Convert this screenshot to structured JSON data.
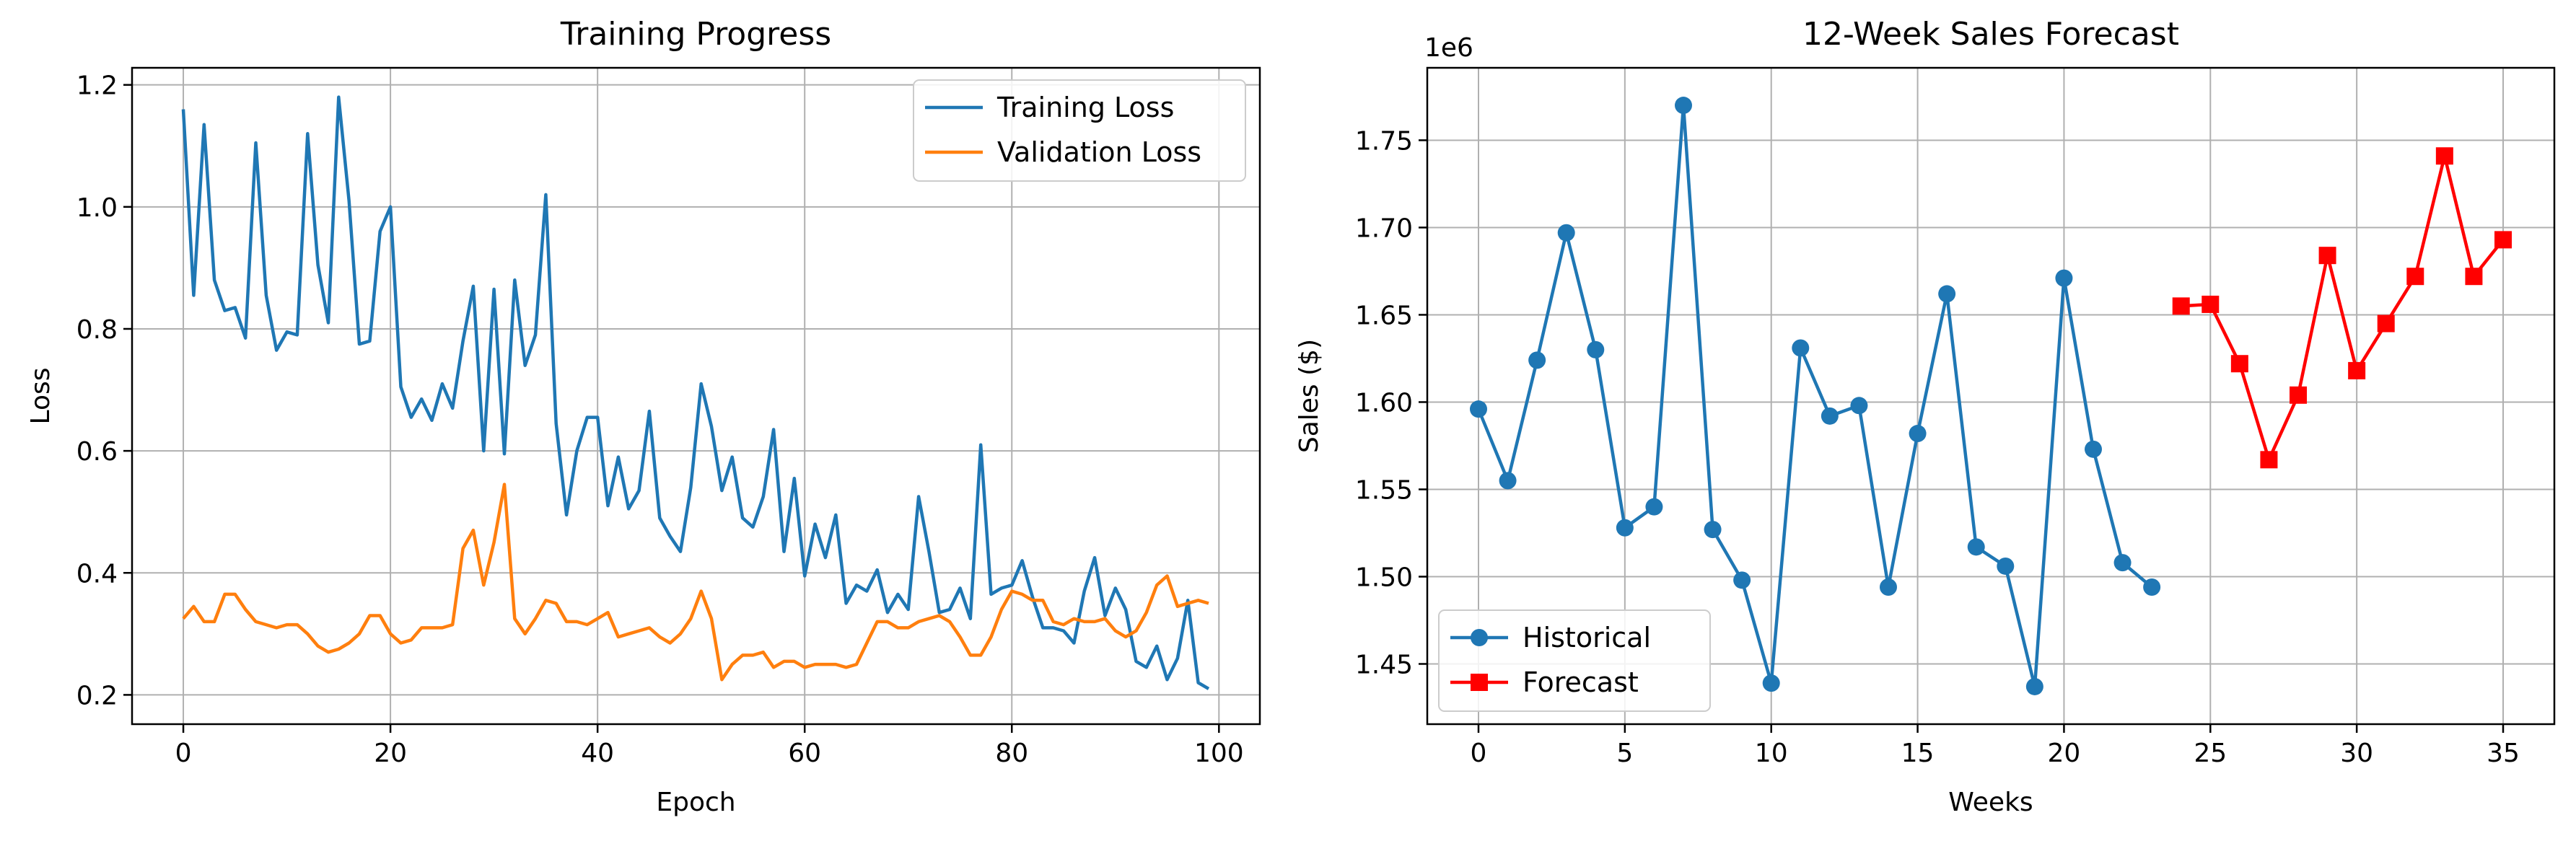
{
  "chart_data": [
    {
      "type": "line",
      "title": "Training Progress",
      "xlabel": "Epoch",
      "ylabel": "Loss",
      "xlim": [
        -4.95,
        103.95
      ],
      "ylim": [
        0.152,
        1.228
      ],
      "xticks": [
        0,
        20,
        40,
        60,
        80,
        100
      ],
      "yticks": [
        0.2,
        0.4,
        0.6,
        0.8,
        1.0,
        1.2
      ],
      "ytick_labels": [
        "0.2",
        "0.4",
        "0.6",
        "0.8",
        "1.0",
        "1.2"
      ],
      "grid": true,
      "legend_position": "upper right",
      "series": [
        {
          "name": "Training Loss",
          "color": "#1f77b4",
          "marker": "none",
          "x": [
            0,
            1,
            2,
            3,
            4,
            5,
            6,
            7,
            8,
            9,
            10,
            11,
            12,
            13,
            14,
            15,
            16,
            17,
            18,
            19,
            20,
            21,
            22,
            23,
            24,
            25,
            26,
            27,
            28,
            29,
            30,
            31,
            32,
            33,
            34,
            35,
            36,
            37,
            38,
            39,
            40,
            41,
            42,
            43,
            44,
            45,
            46,
            47,
            48,
            49,
            50,
            51,
            52,
            53,
            54,
            55,
            56,
            57,
            58,
            59,
            60,
            61,
            62,
            63,
            64,
            65,
            66,
            67,
            68,
            69,
            70,
            71,
            72,
            73,
            74,
            75,
            76,
            77,
            78,
            79,
            80,
            81,
            82,
            83,
            84,
            85,
            86,
            87,
            88,
            89,
            90,
            91,
            92,
            93,
            94,
            95,
            96,
            97,
            98,
            99
          ],
          "values": [
            1.16,
            0.855,
            1.135,
            0.88,
            0.83,
            0.835,
            0.785,
            1.105,
            0.855,
            0.765,
            0.795,
            0.79,
            1.12,
            0.905,
            0.81,
            1.18,
            1.01,
            0.775,
            0.78,
            0.96,
            1.0,
            0.705,
            0.655,
            0.685,
            0.65,
            0.71,
            0.67,
            0.78,
            0.87,
            0.6,
            0.865,
            0.595,
            0.88,
            0.74,
            0.79,
            1.02,
            0.645,
            0.495,
            0.6,
            0.655,
            0.655,
            0.51,
            0.59,
            0.505,
            0.535,
            0.665,
            0.49,
            0.46,
            0.435,
            0.54,
            0.71,
            0.64,
            0.535,
            0.59,
            0.49,
            0.475,
            0.525,
            0.635,
            0.435,
            0.555,
            0.395,
            0.48,
            0.425,
            0.495,
            0.35,
            0.38,
            0.37,
            0.405,
            0.335,
            0.365,
            0.34,
            0.525,
            0.435,
            0.335,
            0.34,
            0.375,
            0.325,
            0.61,
            0.365,
            0.375,
            0.38,
            0.42,
            0.36,
            0.31,
            0.31,
            0.305,
            0.285,
            0.37,
            0.425,
            0.33,
            0.375,
            0.34,
            0.255,
            0.245,
            0.28,
            0.225,
            0.26,
            0.355,
            0.22,
            0.21
          ]
        },
        {
          "name": "Validation Loss",
          "color": "#ff7f0e",
          "marker": "none",
          "x": [
            0,
            1,
            2,
            3,
            4,
            5,
            6,
            7,
            8,
            9,
            10,
            11,
            12,
            13,
            14,
            15,
            16,
            17,
            18,
            19,
            20,
            21,
            22,
            23,
            24,
            25,
            26,
            27,
            28,
            29,
            30,
            31,
            32,
            33,
            34,
            35,
            36,
            37,
            38,
            39,
            40,
            41,
            42,
            43,
            44,
            45,
            46,
            47,
            48,
            49,
            50,
            51,
            52,
            53,
            54,
            55,
            56,
            57,
            58,
            59,
            60,
            61,
            62,
            63,
            64,
            65,
            66,
            67,
            68,
            69,
            70,
            71,
            72,
            73,
            74,
            75,
            76,
            77,
            78,
            79,
            80,
            81,
            82,
            83,
            84,
            85,
            86,
            87,
            88,
            89,
            90,
            91,
            92,
            93,
            94,
            95,
            96,
            97,
            98,
            99
          ],
          "values": [
            0.325,
            0.345,
            0.32,
            0.32,
            0.365,
            0.365,
            0.34,
            0.32,
            0.315,
            0.31,
            0.315,
            0.315,
            0.3,
            0.28,
            0.27,
            0.275,
            0.285,
            0.3,
            0.33,
            0.33,
            0.3,
            0.285,
            0.29,
            0.31,
            0.31,
            0.31,
            0.315,
            0.44,
            0.47,
            0.38,
            0.45,
            0.545,
            0.325,
            0.3,
            0.325,
            0.355,
            0.35,
            0.32,
            0.32,
            0.315,
            0.325,
            0.335,
            0.295,
            0.3,
            0.305,
            0.31,
            0.295,
            0.285,
            0.3,
            0.325,
            0.37,
            0.325,
            0.225,
            0.25,
            0.265,
            0.265,
            0.27,
            0.245,
            0.255,
            0.255,
            0.245,
            0.25,
            0.25,
            0.25,
            0.245,
            0.25,
            0.285,
            0.32,
            0.32,
            0.31,
            0.31,
            0.32,
            0.325,
            0.33,
            0.32,
            0.295,
            0.265,
            0.265,
            0.295,
            0.34,
            0.37,
            0.365,
            0.355,
            0.355,
            0.32,
            0.315,
            0.325,
            0.32,
            0.32,
            0.325,
            0.305,
            0.295,
            0.305,
            0.335,
            0.38,
            0.395,
            0.345,
            0.35,
            0.355,
            0.35
          ]
        }
      ]
    },
    {
      "type": "line",
      "title": "12-Week Sales Forecast",
      "xlabel": "Weeks",
      "ylabel": "Sales ($)",
      "offset_text": "1e6",
      "xlim": [
        -1.75,
        36.75
      ],
      "ylim": [
        1.4155,
        1.7915
      ],
      "xticks": [
        0,
        5,
        10,
        15,
        20,
        25,
        30,
        35
      ],
      "yticks": [
        1.45,
        1.5,
        1.55,
        1.6,
        1.65,
        1.7,
        1.75
      ],
      "ytick_labels": [
        "1.45",
        "1.50",
        "1.55",
        "1.60",
        "1.65",
        "1.70",
        "1.75"
      ],
      "grid": true,
      "legend_position": "lower left",
      "series": [
        {
          "name": "Historical",
          "color": "#1f77b4",
          "marker": "circle",
          "x": [
            0,
            1,
            2,
            3,
            4,
            5,
            6,
            7,
            8,
            9,
            10,
            11,
            12,
            13,
            14,
            15,
            16,
            17,
            18,
            19,
            20,
            21,
            22,
            23
          ],
          "values": [
            1.596,
            1.555,
            1.624,
            1.697,
            1.63,
            1.528,
            1.54,
            1.77,
            1.527,
            1.498,
            1.439,
            1.631,
            1.592,
            1.598,
            1.494,
            1.582,
            1.662,
            1.517,
            1.506,
            1.437,
            1.671,
            1.573,
            1.508,
            1.494
          ]
        },
        {
          "name": "Forecast",
          "color": "#ff0000",
          "marker": "square",
          "x": [
            24,
            25,
            26,
            27,
            28,
            29,
            30,
            31,
            32,
            33,
            34,
            35
          ],
          "values": [
            1.655,
            1.656,
            1.622,
            1.567,
            1.604,
            1.684,
            1.618,
            1.645,
            1.672,
            1.741,
            1.672,
            1.693
          ]
        }
      ]
    }
  ]
}
